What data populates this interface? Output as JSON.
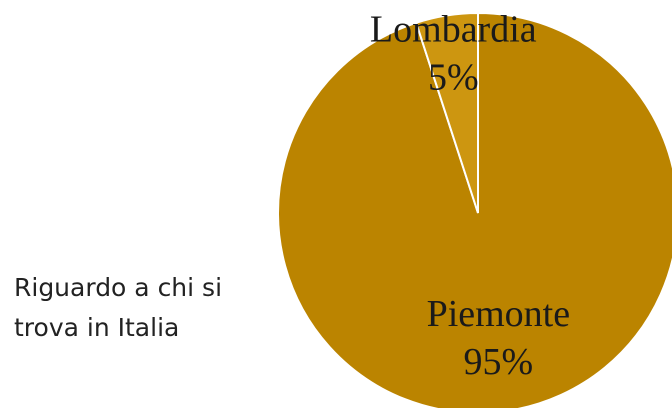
{
  "chart_data": {
    "type": "pie",
    "title": "Riguardo a chi si trova in Italia",
    "categories": [
      "Piemonte",
      "Lombardia"
    ],
    "values": [
      95,
      5
    ],
    "value_labels": [
      "95%",
      "5%"
    ],
    "colors": [
      "#bb8400",
      "#cd9610"
    ]
  }
}
